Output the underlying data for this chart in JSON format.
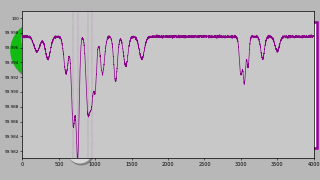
{
  "bg_color": "#b8b8b8",
  "plot_bg": "#c8c8c8",
  "spectrum_color": "#880088",
  "box_color": "#990099",
  "ylim_lo": 99.981,
  "ylim_hi": 100.001,
  "xlim_lo": 0,
  "xlim_hi": 4000,
  "xtick_vals": [
    0,
    500,
    1000,
    1500,
    2000,
    2500,
    3000,
    3500,
    4000
  ],
  "ytick_vals": [
    99.982,
    99.984,
    99.986,
    99.988,
    99.99,
    99.992,
    99.994,
    99.996,
    99.998,
    100.0
  ],
  "ytick_labels": [
    "99.982",
    "99.984",
    "99.986",
    "99.988",
    "99.990",
    "99.992",
    "99.994",
    "99.996",
    "99.998",
    "100"
  ],
  "ir_peaks_x": [
    200,
    350,
    600,
    700,
    760,
    900,
    950,
    1000,
    1100,
    1280,
    1420,
    1640,
    3000,
    3050,
    3100,
    3300,
    3500
  ],
  "ir_peaks_depth": [
    0.002,
    0.003,
    0.005,
    0.012,
    0.016,
    0.01,
    0.008,
    0.007,
    0.005,
    0.006,
    0.004,
    0.003,
    0.005,
    0.006,
    0.004,
    0.003,
    0.002
  ],
  "ir_peaks_sigma": [
    40,
    35,
    30,
    25,
    20,
    25,
    22,
    20,
    28,
    25,
    30,
    35,
    20,
    18,
    15,
    25,
    30
  ],
  "green_color": "#11bb11",
  "dark_gray": "#4a4a4a",
  "med_gray": "#666666",
  "light_gray": "#aaaaaa",
  "white_sphere": "#d8d8d8",
  "bond_gray": "#888888",
  "bond_green": "#449944"
}
